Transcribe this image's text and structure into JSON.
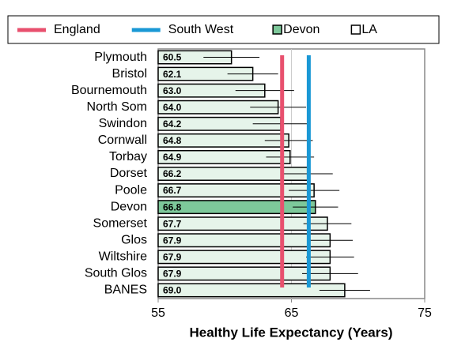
{
  "chart_data": {
    "type": "hbar",
    "xlabel": "Healthy Life Expectancy (Years)",
    "categories": [
      "Plymouth",
      "Bristol",
      "Bournemouth",
      "North Som",
      "Swindon",
      "Cornwall",
      "Torbay",
      "Dorset",
      "Poole",
      "Devon",
      "Somerset",
      "Glos",
      "Wiltshire",
      "South Glos",
      "BANES"
    ],
    "values": [
      60.5,
      62.1,
      63.0,
      64.0,
      64.2,
      64.8,
      64.9,
      66.2,
      66.7,
      66.8,
      67.7,
      67.9,
      67.9,
      67.9,
      69.0
    ],
    "value_labels": [
      "60.5",
      "62.1",
      "63.0",
      "64.0",
      "64.2",
      "64.8",
      "64.9",
      "66.2",
      "66.7",
      "66.8",
      "67.7",
      "67.9",
      "67.9",
      "67.9",
      "69.0"
    ],
    "errors": [
      2.1,
      1.9,
      2.2,
      2.1,
      2.1,
      1.8,
      1.8,
      1.9,
      1.9,
      1.7,
      1.8,
      1.7,
      1.8,
      2.1,
      1.9
    ],
    "bar_colors": [
      "#e6f4ea",
      "#e6f4ea",
      "#e6f4ea",
      "#e6f4ea",
      "#e6f4ea",
      "#e6f4ea",
      "#e6f4ea",
      "#e6f4ea",
      "#e6f4ea",
      "#7dc89a",
      "#e6f4ea",
      "#e6f4ea",
      "#e6f4ea",
      "#e6f4ea",
      "#e6f4ea"
    ],
    "reference_lines": [
      {
        "name": "England",
        "value": 64.3,
        "color": "#e8506e"
      },
      {
        "name": "South West",
        "value": 66.3,
        "color": "#1a98d5"
      }
    ],
    "bar_legend": [
      {
        "name": "Devon",
        "color": "#7dc89a"
      },
      {
        "name": "LA",
        "color": "#ffffff"
      }
    ],
    "xlim": [
      55,
      75
    ],
    "xticks": [
      55,
      65,
      75
    ],
    "grid": true
  }
}
